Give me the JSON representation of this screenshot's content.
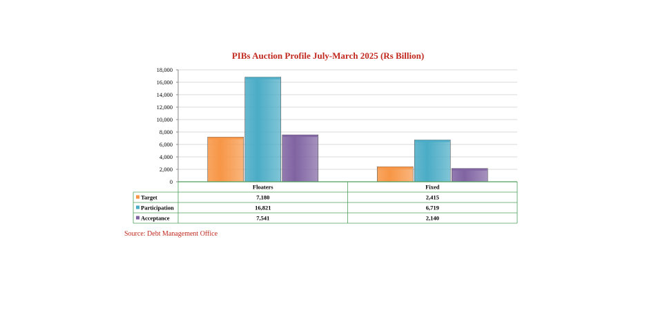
{
  "chart_data": {
    "type": "bar",
    "title": "PIBs Auction Profile July-March 2025 (Rs Billion)",
    "categories": [
      "Floaters",
      "Fixed"
    ],
    "series": [
      {
        "name": "Target",
        "values": [
          7180,
          2415
        ],
        "color": "#f79646",
        "display": [
          "7,180",
          "2,415"
        ]
      },
      {
        "name": "Participation",
        "values": [
          16821,
          6719
        ],
        "color": "#4bacc6",
        "display": [
          "16,821",
          "6,719"
        ]
      },
      {
        "name": "Acceptance",
        "values": [
          7541,
          2140
        ],
        "color": "#8064a2",
        "display": [
          "7,541",
          "2,140"
        ]
      }
    ],
    "ylim": [
      0,
      18000
    ],
    "yticks": [
      "0",
      "2,000",
      "4,000",
      "6,000",
      "8,000",
      "10,000",
      "12,000",
      "14,000",
      "16,000",
      "18,000"
    ],
    "grid": true,
    "legend": "data-table",
    "gridColor": "#d9d9d9",
    "tableBorderColor": "#4f9f5a"
  },
  "source": "Source: Debt Management Office"
}
